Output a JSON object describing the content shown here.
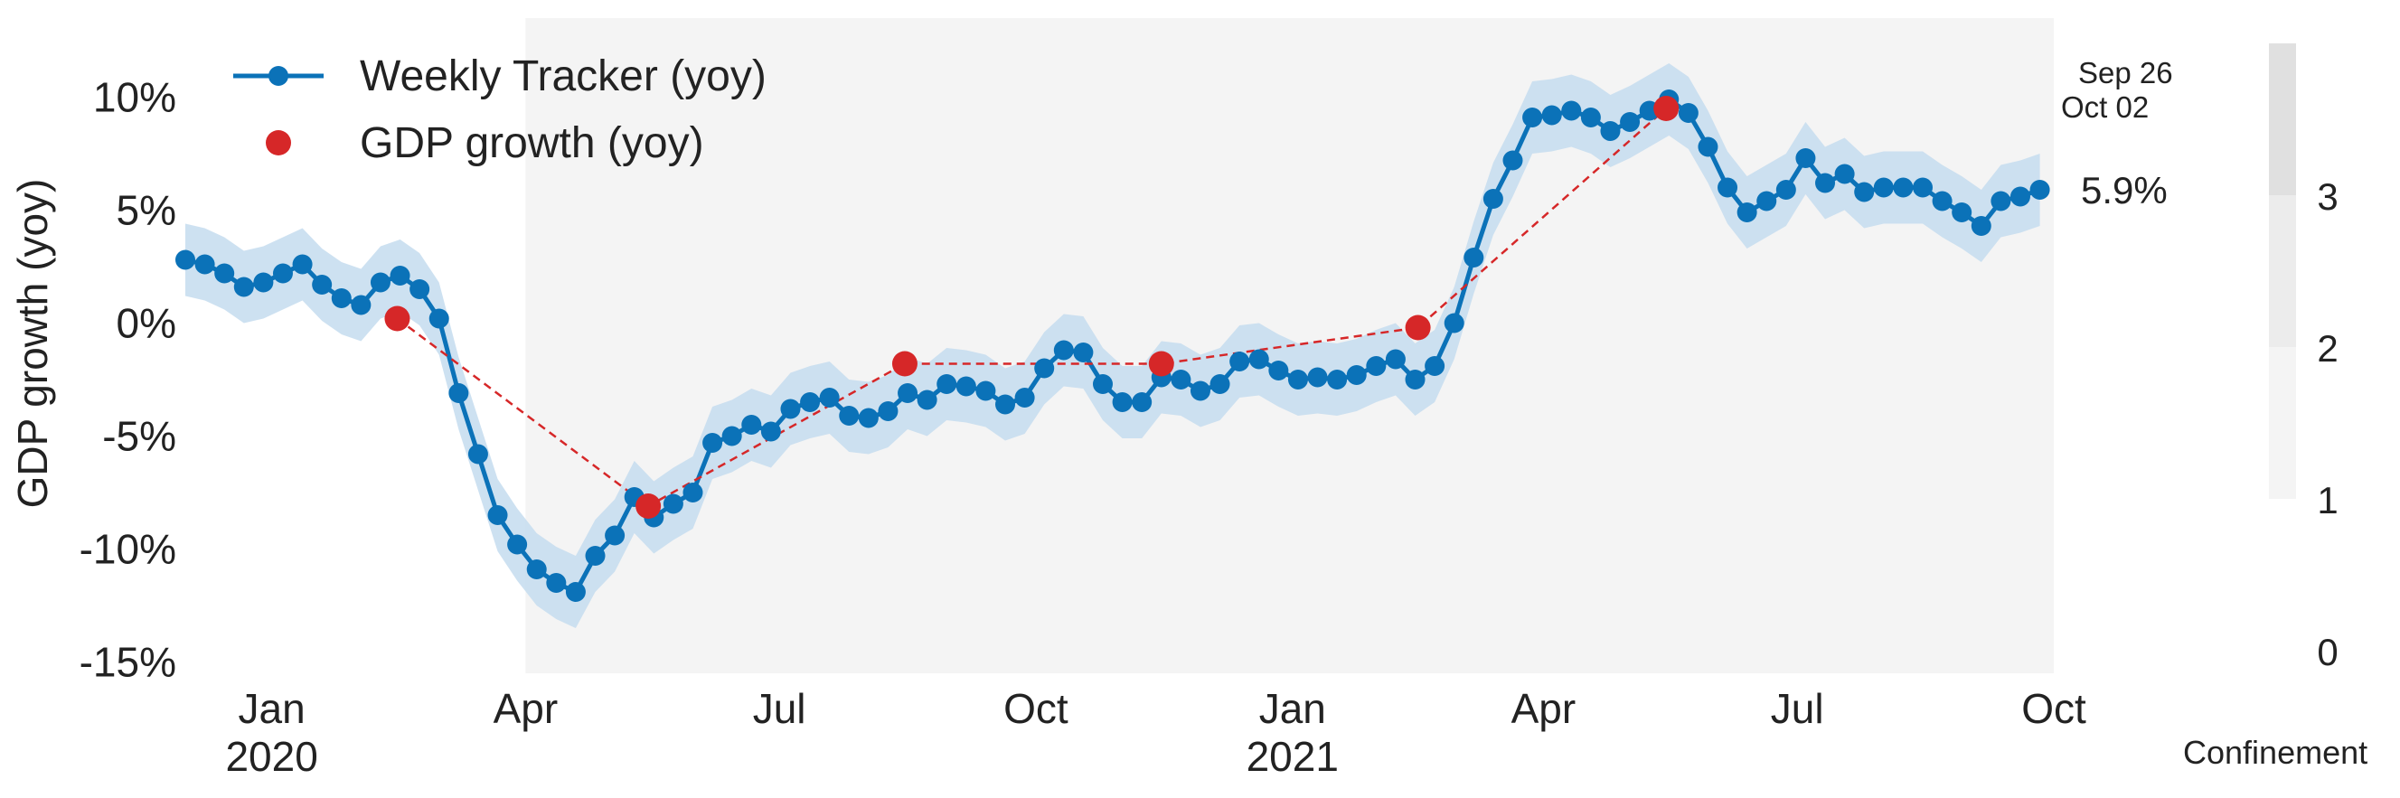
{
  "chart_data": {
    "type": "line",
    "ylabel": "GDP growth (yoy)",
    "ylim": [
      -15.5,
      13.5
    ],
    "yticks": [
      {
        "value": 10,
        "label": "10%"
      },
      {
        "value": 5,
        "label": "5%"
      },
      {
        "value": 0,
        "label": "0%"
      },
      {
        "value": -5,
        "label": "-5%"
      },
      {
        "value": -10,
        "label": "-10%"
      },
      {
        "value": -15,
        "label": "-15%"
      }
    ],
    "xlim": [
      "2019-12-01",
      "2021-10-01"
    ],
    "xticks": [
      {
        "date": "2020-01-01",
        "label": "Jan",
        "sublabel": "2020"
      },
      {
        "date": "2020-04-01",
        "label": "Apr",
        "sublabel": ""
      },
      {
        "date": "2020-07-01",
        "label": "Jul",
        "sublabel": ""
      },
      {
        "date": "2020-10-01",
        "label": "Oct",
        "sublabel": ""
      },
      {
        "date": "2021-01-01",
        "label": "Jan",
        "sublabel": "2021"
      },
      {
        "date": "2021-04-01",
        "label": "Apr",
        "sublabel": ""
      },
      {
        "date": "2021-07-01",
        "label": "Jul",
        "sublabel": ""
      },
      {
        "date": "2021-10-01",
        "label": "Oct",
        "sublabel": ""
      }
    ],
    "grid": false,
    "legend": "top-left",
    "shaded_period": {
      "start": "2020-04-01",
      "end": "2021-10-01"
    },
    "series": [
      {
        "name": "Weekly Tracker (yoy)",
        "color": "#0b72b8",
        "band_color": "#c4dcee",
        "band_halfwidth": 1.6,
        "points": [
          [
            "2019-12-01",
            2.8
          ],
          [
            "2019-12-08",
            2.6
          ],
          [
            "2019-12-15",
            2.2
          ],
          [
            "2019-12-22",
            1.6
          ],
          [
            "2019-12-29",
            1.8
          ],
          [
            "2020-01-05",
            2.2
          ],
          [
            "2020-01-12",
            2.6
          ],
          [
            "2020-01-19",
            1.7
          ],
          [
            "2020-01-26",
            1.1
          ],
          [
            "2020-02-02",
            0.8
          ],
          [
            "2020-02-09",
            1.8
          ],
          [
            "2020-02-16",
            2.1
          ],
          [
            "2020-02-23",
            1.5
          ],
          [
            "2020-03-01",
            0.2
          ],
          [
            "2020-03-08",
            -3.1
          ],
          [
            "2020-03-15",
            -5.8
          ],
          [
            "2020-03-22",
            -8.5
          ],
          [
            "2020-03-29",
            -9.8
          ],
          [
            "2020-04-05",
            -10.9
          ],
          [
            "2020-04-12",
            -11.5
          ],
          [
            "2020-04-19",
            -11.9
          ],
          [
            "2020-04-26",
            -10.3
          ],
          [
            "2020-05-03",
            -9.4
          ],
          [
            "2020-05-10",
            -7.7
          ],
          [
            "2020-05-17",
            -8.6
          ],
          [
            "2020-05-24",
            -8.0
          ],
          [
            "2020-05-31",
            -7.5
          ],
          [
            "2020-06-07",
            -5.3
          ],
          [
            "2020-06-14",
            -5.0
          ],
          [
            "2020-06-21",
            -4.5
          ],
          [
            "2020-06-28",
            -4.8
          ],
          [
            "2020-07-05",
            -3.8
          ],
          [
            "2020-07-12",
            -3.5
          ],
          [
            "2020-07-19",
            -3.3
          ],
          [
            "2020-07-26",
            -4.1
          ],
          [
            "2020-08-02",
            -4.2
          ],
          [
            "2020-08-09",
            -3.9
          ],
          [
            "2020-08-16",
            -3.1
          ],
          [
            "2020-08-23",
            -3.4
          ],
          [
            "2020-08-30",
            -2.7
          ],
          [
            "2020-09-06",
            -2.8
          ],
          [
            "2020-09-13",
            -3.0
          ],
          [
            "2020-09-20",
            -3.6
          ],
          [
            "2020-09-27",
            -3.3
          ],
          [
            "2020-10-04",
            -2.0
          ],
          [
            "2020-10-11",
            -1.2
          ],
          [
            "2020-10-18",
            -1.3
          ],
          [
            "2020-10-25",
            -2.7
          ],
          [
            "2020-11-01",
            -3.5
          ],
          [
            "2020-11-08",
            -3.5
          ],
          [
            "2020-11-15",
            -2.4
          ],
          [
            "2020-11-22",
            -2.5
          ],
          [
            "2020-11-29",
            -3.0
          ],
          [
            "2020-12-06",
            -2.7
          ],
          [
            "2020-12-13",
            -1.7
          ],
          [
            "2020-12-20",
            -1.6
          ],
          [
            "2020-12-27",
            -2.1
          ],
          [
            "2021-01-03",
            -2.5
          ],
          [
            "2021-01-10",
            -2.4
          ],
          [
            "2021-01-17",
            -2.5
          ],
          [
            "2021-01-24",
            -2.3
          ],
          [
            "2021-01-31",
            -1.9
          ],
          [
            "2021-02-07",
            -1.6
          ],
          [
            "2021-02-14",
            -2.5
          ],
          [
            "2021-02-21",
            -1.9
          ],
          [
            "2021-02-28",
            0.0
          ],
          [
            "2021-03-07",
            2.9
          ],
          [
            "2021-03-14",
            5.5
          ],
          [
            "2021-03-21",
            7.2
          ],
          [
            "2021-03-28",
            9.1
          ],
          [
            "2021-04-04",
            9.2
          ],
          [
            "2021-04-11",
            9.4
          ],
          [
            "2021-04-18",
            9.1
          ],
          [
            "2021-04-25",
            8.5
          ],
          [
            "2021-05-02",
            8.9
          ],
          [
            "2021-05-09",
            9.4
          ],
          [
            "2021-05-16",
            9.9
          ],
          [
            "2021-05-23",
            9.3
          ],
          [
            "2021-05-30",
            7.8
          ],
          [
            "2021-06-06",
            6.0
          ],
          [
            "2021-06-13",
            4.9
          ],
          [
            "2021-06-20",
            5.4
          ],
          [
            "2021-06-27",
            5.9
          ],
          [
            "2021-07-04",
            7.3
          ],
          [
            "2021-07-11",
            6.2
          ],
          [
            "2021-07-18",
            6.6
          ],
          [
            "2021-07-25",
            5.8
          ],
          [
            "2021-08-01",
            6.0
          ],
          [
            "2021-08-08",
            6.0
          ],
          [
            "2021-08-15",
            6.0
          ],
          [
            "2021-08-22",
            5.4
          ],
          [
            "2021-08-29",
            4.9
          ],
          [
            "2021-09-05",
            4.3
          ],
          [
            "2021-09-12",
            5.4
          ],
          [
            "2021-09-19",
            5.6
          ],
          [
            "2021-09-26",
            5.9
          ]
        ]
      },
      {
        "name": "GDP growth (yoy)",
        "color": "#d62728",
        "style": "markers with dashed connector",
        "points": [
          [
            "2020-02-15",
            0.2
          ],
          [
            "2020-05-15",
            -8.1
          ],
          [
            "2020-08-15",
            -1.8
          ],
          [
            "2020-11-15",
            -1.8
          ],
          [
            "2021-02-15",
            -0.2
          ],
          [
            "2021-05-15",
            9.5
          ]
        ]
      }
    ],
    "annotations": {
      "latest_value": "5.9%",
      "last_week": "Sep 26",
      "update_date": "Oct 02"
    },
    "confinement_scale": {
      "label": "Confinement",
      "ticks": [
        "0",
        "1",
        "2",
        "3"
      ],
      "levels": [
        {
          "from": 1,
          "to": 2,
          "color": "#f4f4f4"
        },
        {
          "from": 2,
          "to": 3,
          "color": "#ececec"
        },
        {
          "from": 3,
          "to": 4,
          "color": "#e0e0e0"
        }
      ],
      "period_level": 1,
      "period_color": "#f4f4f4"
    }
  }
}
